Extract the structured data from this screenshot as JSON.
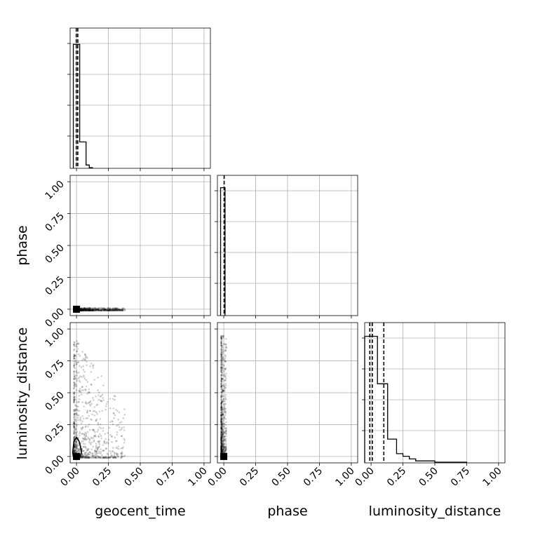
{
  "chart_data": {
    "type": "corner",
    "parameters": [
      "geocent_time",
      "phase",
      "luminosity_distance"
    ],
    "axis_range": [
      -0.05,
      1.05
    ],
    "tick_labels": [
      "0.00",
      "0.25",
      "0.50",
      "0.75",
      "1.00"
    ],
    "grid": true,
    "panels": [
      {
        "id": "hist-geocent_time",
        "type": "histogram",
        "x": "geocent_time",
        "bin_edges": [
          -0.025,
          0.0,
          0.025,
          0.05,
          0.075,
          0.1,
          0.125
        ],
        "density_fraction": [
          0.94,
          0.94,
          0.2,
          0.2,
          0.025,
          0.005
        ],
        "quantile_lines": [
          -0.002,
          0.01
        ]
      },
      {
        "id": "hist-phase",
        "type": "histogram",
        "x": "phase",
        "bin_edges": [
          -0.025,
          0.0,
          0.01
        ],
        "density_fraction": [
          0.97,
          0.97
        ],
        "quantile_lines": [
          0.003
        ]
      },
      {
        "id": "hist-luminosity_distance",
        "type": "histogram",
        "x": "luminosity_distance",
        "bin_edges": [
          -0.05,
          0.0,
          0.05,
          0.1,
          0.13,
          0.2,
          0.25,
          0.3,
          0.35,
          0.5,
          0.75
        ],
        "density_fraction": [
          0.96,
          0.96,
          0.6,
          0.6,
          0.18,
          0.07,
          0.05,
          0.03,
          0.015,
          0.005
        ],
        "quantile_lines": [
          -0.01,
          0.01,
          0.1
        ]
      },
      {
        "id": "scatter-phase-vs-geocent_time",
        "type": "scatter_2d",
        "x": "geocent_time",
        "y": "phase",
        "point_cloud": {
          "x_range": [
            -0.02,
            0.38
          ],
          "y_range": [
            -0.01,
            0.01
          ],
          "density": "concentrated near 0"
        }
      },
      {
        "id": "scatter-luminosity_distance-vs-geocent_time",
        "type": "scatter_2d",
        "x": "geocent_time",
        "y": "luminosity_distance",
        "point_cloud": {
          "x_range": [
            -0.02,
            0.38
          ],
          "y_range": [
            -0.01,
            0.94
          ],
          "density": "concentrated near 0"
        },
        "contour": [
          [
            -0.03,
            0.03
          ],
          [
            -0.02,
            0.12
          ],
          [
            0.0,
            0.15
          ],
          [
            0.02,
            0.12
          ],
          [
            0.04,
            0.04
          ],
          [
            0.03,
            0.0
          ],
          [
            0.0,
            -0.02
          ],
          [
            -0.025,
            0.0
          ]
        ]
      },
      {
        "id": "scatter-luminosity_distance-vs-phase",
        "type": "scatter_2d",
        "x": "phase",
        "y": "luminosity_distance",
        "point_cloud": {
          "x_range": [
            -0.02,
            0.02
          ],
          "y_range": [
            -0.01,
            0.95
          ],
          "density": "concentrated near 0"
        }
      }
    ]
  },
  "labels": {
    "x": [
      "geocent_time",
      "phase",
      "luminosity_distance"
    ],
    "y": [
      "phase",
      "luminosity_distance"
    ]
  }
}
